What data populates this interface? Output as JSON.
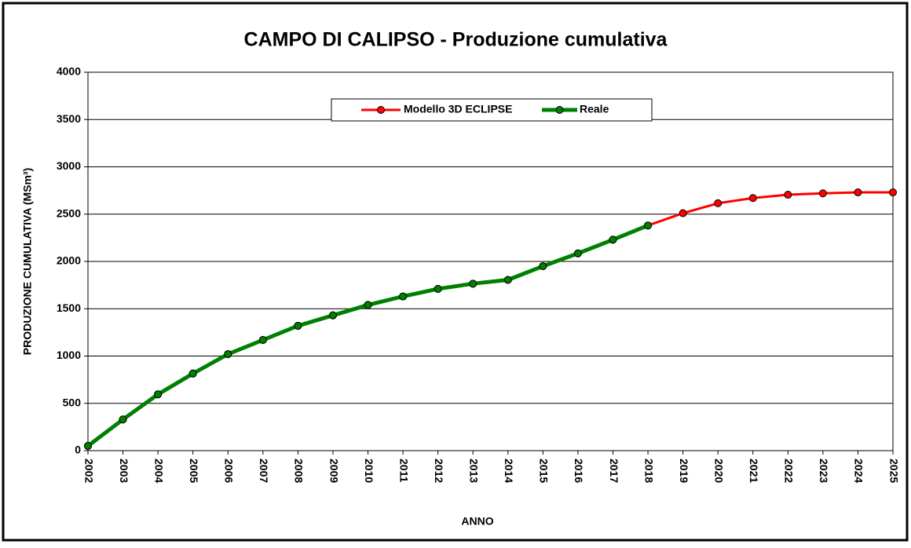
{
  "chart_data": {
    "type": "line",
    "title": "CAMPO DI CALIPSO - Produzione cumulativa",
    "x_label": "ANNO",
    "y_label": "PRODUZIONE  CUMULATIVA (MSm³)",
    "x": [
      2002,
      2003,
      2004,
      2005,
      2006,
      2007,
      2008,
      2009,
      2010,
      2011,
      2012,
      2013,
      2014,
      2015,
      2016,
      2017,
      2018,
      2019,
      2020,
      2021,
      2022,
      2023,
      2024,
      2025
    ],
    "series": [
      {
        "name": "Modello 3D ECLIPSE",
        "color": "#ff0000",
        "values": [
          50,
          330,
          595,
          815,
          1020,
          1170,
          1320,
          1430,
          1540,
          1630,
          1710,
          1765,
          1805,
          1950,
          2085,
          2230,
          2380,
          2510,
          2615,
          2670,
          2705,
          2720,
          2730,
          2730
        ]
      },
      {
        "name": "Reale",
        "color": "#008000",
        "values": [
          50,
          330,
          595,
          815,
          1020,
          1170,
          1320,
          1430,
          1540,
          1630,
          1710,
          1765,
          1805,
          1950,
          2085,
          2230,
          2380,
          null,
          null,
          null,
          null,
          null,
          null,
          null
        ]
      }
    ],
    "xlim": [
      2002,
      2025
    ],
    "xticks": [
      2002,
      2003,
      2004,
      2005,
      2006,
      2007,
      2008,
      2009,
      2010,
      2011,
      2012,
      2013,
      2014,
      2015,
      2016,
      2017,
      2018,
      2019,
      2020,
      2021,
      2022,
      2023,
      2024,
      2025
    ],
    "ylim": [
      0,
      4000
    ],
    "yticks": [
      0,
      500,
      1000,
      1500,
      2000,
      2500,
      3000,
      3500,
      4000
    ],
    "grid": true,
    "legend": "top"
  }
}
